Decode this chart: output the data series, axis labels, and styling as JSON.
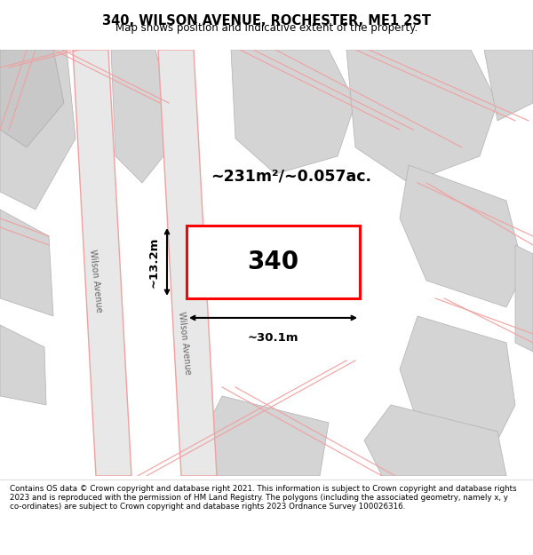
{
  "title": "340, WILSON AVENUE, ROCHESTER, ME1 2ST",
  "subtitle": "Map shows position and indicative extent of the property.",
  "footer": "Contains OS data © Crown copyright and database right 2021. This information is subject to Crown copyright and database rights 2023 and is reproduced with the permission of HM Land Registry. The polygons (including the associated geometry, namely x, y co-ordinates) are subject to Crown copyright and database rights 2023 Ordnance Survey 100026316.",
  "property_color": "#ff0000",
  "property_label": "340",
  "area_label": "~231m²/~0.057ac.",
  "width_label": "~30.1m",
  "height_label": "~13.2m",
  "wilson_avenue_label": "Wilson Avenue",
  "road_color": "#f0a0a0",
  "bld_fill": "#d4d4d4",
  "road_fill": "#e8e8e8",
  "map_bg": "#f0f0f0"
}
